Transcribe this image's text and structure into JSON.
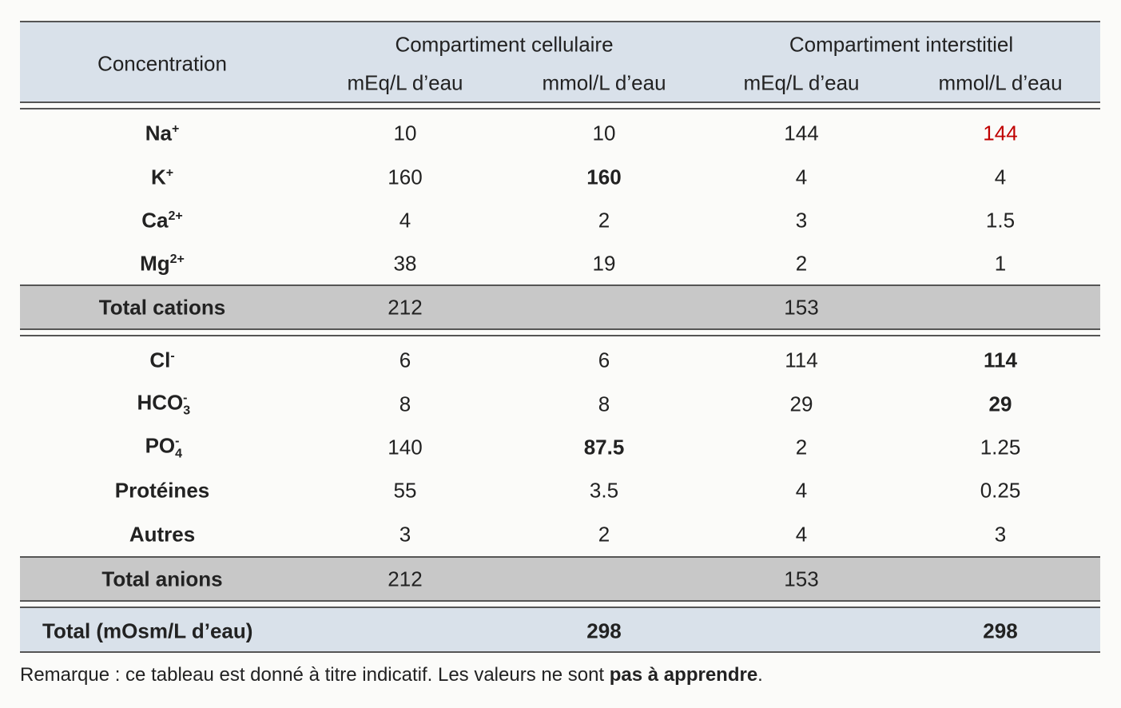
{
  "table": {
    "header": {
      "concentration": "Concentration",
      "groups": [
        "Compartiment cellulaire",
        "Compartiment interstitiel"
      ],
      "units": [
        "mEq/L d’eau",
        "mmol/L d’eau",
        "mEq/L d’eau",
        "mmol/L d’eau"
      ]
    },
    "cations": [
      {
        "ion": "Na",
        "sup": "+",
        "values": [
          10,
          10,
          144,
          144
        ],
        "red": [
          3
        ]
      },
      {
        "ion": "K",
        "sup": "+",
        "values": [
          160,
          160,
          4,
          4
        ],
        "bold": [
          1
        ]
      },
      {
        "ion": "Ca",
        "sup": "2+",
        "values": [
          4,
          2,
          3,
          1.5
        ]
      },
      {
        "ion": "Mg",
        "sup": "2+",
        "values": [
          38,
          19,
          2,
          1
        ]
      }
    ],
    "total_cations": {
      "label": "Total cations",
      "values": [
        212,
        153
      ]
    },
    "anions": [
      {
        "ion": "Cl",
        "sup": "-",
        "values": [
          6,
          6,
          114,
          114
        ],
        "bold": [
          3
        ]
      },
      {
        "ion": "HCO",
        "sub": "3",
        "sup": "-",
        "values": [
          8,
          8,
          29,
          29
        ],
        "bold": [
          3
        ]
      },
      {
        "ion": "PO",
        "sub": "4",
        "sup": "-",
        "values": [
          140,
          87.5,
          2,
          1.25
        ],
        "bold": [
          1
        ]
      },
      {
        "ion": "Protéines",
        "values": [
          55,
          3.5,
          4,
          0.25
        ]
      },
      {
        "ion": "Autres",
        "values": [
          3,
          2,
          4,
          3
        ]
      }
    ],
    "total_anions": {
      "label": "Total anions",
      "values": [
        212,
        153
      ]
    },
    "total": {
      "label": "Total (mOsm/L d’eau)",
      "values": [
        298,
        298
      ]
    }
  },
  "note": {
    "text": "Remarque : ce tableau est donné à titre indicatif. Les valeurs ne sont ",
    "bold": "pas à apprendre",
    "end": "."
  }
}
